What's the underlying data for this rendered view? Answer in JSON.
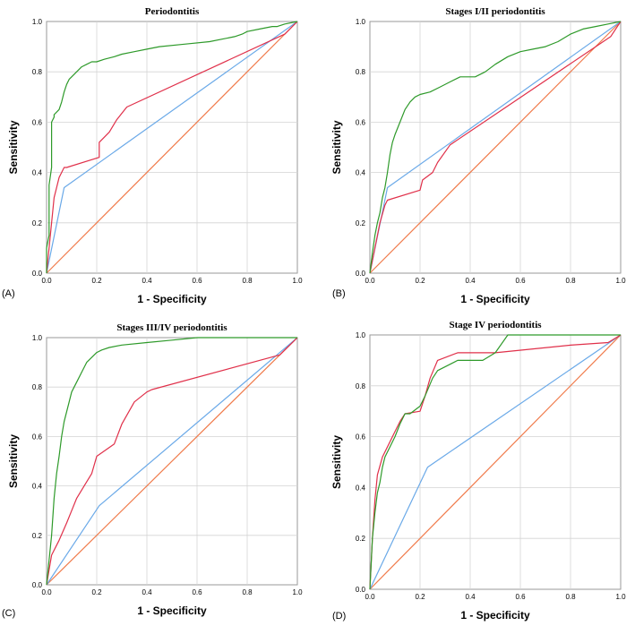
{
  "figure": {
    "colors": {
      "green": "#2e9a2a",
      "red": "#e0304a",
      "blue": "#6aa9e8",
      "orange": "#f07a4a"
    }
  },
  "chart_data": [
    {
      "type": "line",
      "panel_label": "(A)",
      "title": "Periodontitis",
      "xlabel": "1 - Specificity",
      "ylabel": "Sensitivity",
      "xlim": [
        0,
        1
      ],
      "ylim": [
        0,
        1
      ],
      "xticks": [
        "0.0",
        "0.2",
        "0.4",
        "0.6",
        "0.8",
        "1.0"
      ],
      "yticks": [
        "0.0",
        "0.2",
        "0.4",
        "0.6",
        "0.8",
        "1.0"
      ],
      "grid": true,
      "series": [
        {
          "color": "green",
          "x": [
            0,
            0,
            0.01,
            0.01,
            0.02,
            0.02,
            0.03,
            0.03,
            0.05,
            0.06,
            0.07,
            0.08,
            0.09,
            0.1,
            0.12,
            0.14,
            0.16,
            0.18,
            0.2,
            0.23,
            0.27,
            0.3,
            0.35,
            0.4,
            0.45,
            0.55,
            0.65,
            0.7,
            0.75,
            0.78,
            0.8,
            0.85,
            0.9,
            0.92,
            0.95,
            1.0
          ],
          "y": [
            0,
            0.1,
            0.15,
            0.35,
            0.42,
            0.6,
            0.62,
            0.63,
            0.65,
            0.68,
            0.72,
            0.75,
            0.77,
            0.78,
            0.8,
            0.82,
            0.83,
            0.84,
            0.84,
            0.85,
            0.86,
            0.87,
            0.88,
            0.89,
            0.9,
            0.91,
            0.92,
            0.93,
            0.94,
            0.95,
            0.96,
            0.97,
            0.98,
            0.98,
            0.99,
            1.0
          ]
        },
        {
          "color": "red",
          "x": [
            0,
            0.01,
            0.02,
            0.03,
            0.04,
            0.05,
            0.06,
            0.07,
            0.08,
            0.21,
            0.21,
            0.25,
            0.28,
            0.32,
            0.95,
            1.0
          ],
          "y": [
            0,
            0.1,
            0.2,
            0.3,
            0.34,
            0.38,
            0.4,
            0.42,
            0.42,
            0.46,
            0.52,
            0.56,
            0.61,
            0.66,
            0.95,
            1.0
          ]
        },
        {
          "color": "blue",
          "x": [
            0,
            0.07,
            1.0
          ],
          "y": [
            0,
            0.34,
            1.0
          ]
        },
        {
          "color": "orange",
          "x": [
            0,
            1.0
          ],
          "y": [
            0,
            1.0
          ]
        }
      ]
    },
    {
      "type": "line",
      "panel_label": "(B)",
      "title": "Stages I/II periodontitis",
      "xlabel": "1 - Specificity",
      "ylabel": "Sensitivity",
      "xlim": [
        0,
        1
      ],
      "ylim": [
        0,
        1
      ],
      "xticks": [
        "0.0",
        "0.2",
        "0.4",
        "0.6",
        "0.8",
        "1.0"
      ],
      "yticks": [
        "0.0",
        "0.2",
        "0.4",
        "0.6",
        "0.8",
        "1.0"
      ],
      "grid": true,
      "series": [
        {
          "color": "green",
          "x": [
            0,
            0.01,
            0.02,
            0.03,
            0.04,
            0.05,
            0.06,
            0.07,
            0.08,
            0.09,
            0.1,
            0.12,
            0.14,
            0.16,
            0.18,
            0.2,
            0.24,
            0.28,
            0.32,
            0.36,
            0.42,
            0.46,
            0.5,
            0.55,
            0.6,
            0.65,
            0.7,
            0.75,
            0.8,
            0.85,
            0.9,
            0.95,
            1.0
          ],
          "y": [
            0,
            0.08,
            0.15,
            0.2,
            0.24,
            0.3,
            0.34,
            0.4,
            0.47,
            0.52,
            0.55,
            0.6,
            0.65,
            0.68,
            0.7,
            0.71,
            0.72,
            0.74,
            0.76,
            0.78,
            0.78,
            0.8,
            0.83,
            0.86,
            0.88,
            0.89,
            0.9,
            0.92,
            0.95,
            0.97,
            0.98,
            0.99,
            1.0
          ]
        },
        {
          "color": "red",
          "x": [
            0,
            0.02,
            0.04,
            0.06,
            0.07,
            0.2,
            0.21,
            0.25,
            0.27,
            0.32,
            0.96,
            1.0
          ],
          "y": [
            0,
            0.1,
            0.2,
            0.27,
            0.29,
            0.33,
            0.37,
            0.4,
            0.44,
            0.51,
            0.94,
            1.0
          ]
        },
        {
          "color": "blue",
          "x": [
            0,
            0.07,
            1.0
          ],
          "y": [
            0,
            0.34,
            1.0
          ]
        },
        {
          "color": "orange",
          "x": [
            0,
            1.0
          ],
          "y": [
            0,
            1.0
          ]
        }
      ]
    },
    {
      "type": "line",
      "panel_label": "(C)",
      "title": "Stages III/IV periodontitis",
      "xlabel": "1 - Specificity",
      "ylabel": "Sensitivity",
      "xlim": [
        0,
        1
      ],
      "ylim": [
        0,
        1
      ],
      "xticks": [
        "0.0",
        "0.2",
        "0.4",
        "0.6",
        "0.8",
        "1.0"
      ],
      "yticks": [
        "0.0",
        "0.2",
        "0.4",
        "0.6",
        "0.8",
        "1.0"
      ],
      "grid": true,
      "series": [
        {
          "color": "green",
          "x": [
            0,
            0.01,
            0.02,
            0.03,
            0.04,
            0.05,
            0.06,
            0.07,
            0.08,
            0.09,
            0.1,
            0.12,
            0.14,
            0.16,
            0.18,
            0.2,
            0.22,
            0.25,
            0.3,
            0.4,
            0.5,
            0.6,
            0.8,
            1.0
          ],
          "y": [
            0,
            0.1,
            0.2,
            0.35,
            0.45,
            0.52,
            0.6,
            0.66,
            0.7,
            0.74,
            0.78,
            0.82,
            0.86,
            0.9,
            0.92,
            0.94,
            0.95,
            0.96,
            0.97,
            0.98,
            0.99,
            1.0,
            1.0,
            1.0
          ],
          "_": 0
        },
        {
          "color": "red",
          "x": [
            0,
            0.02,
            0.05,
            0.08,
            0.1,
            0.12,
            0.15,
            0.18,
            0.2,
            0.27,
            0.3,
            0.35,
            0.4,
            0.42,
            0.93,
            1.0
          ],
          "y": [
            0,
            0.12,
            0.18,
            0.25,
            0.3,
            0.35,
            0.4,
            0.45,
            0.52,
            0.57,
            0.65,
            0.74,
            0.78,
            0.79,
            0.93,
            1.0
          ]
        },
        {
          "color": "blue",
          "x": [
            0,
            0.21,
            1.0
          ],
          "y": [
            0,
            0.32,
            1.0
          ]
        },
        {
          "color": "orange",
          "x": [
            0,
            1.0
          ],
          "y": [
            0,
            1.0
          ]
        }
      ]
    },
    {
      "type": "line",
      "panel_label": "(D)",
      "title": "Stage IV periodontitis",
      "xlabel": "1 - Specificity",
      "ylabel": "Sensitivity",
      "xlim": [
        0,
        1
      ],
      "ylim": [
        0,
        1
      ],
      "xticks": [
        "0.0",
        "0.2",
        "0.4",
        "0.6",
        "0.8",
        "1.0"
      ],
      "yticks": [
        "0.0",
        "0.2",
        "0.4",
        "0.6",
        "0.8",
        "1.0"
      ],
      "grid": true,
      "series": [
        {
          "color": "green",
          "x": [
            0,
            0.01,
            0.02,
            0.03,
            0.04,
            0.05,
            0.06,
            0.08,
            0.1,
            0.12,
            0.14,
            0.16,
            0.2,
            0.22,
            0.25,
            0.27,
            0.35,
            0.45,
            0.5,
            0.55,
            0.6,
            0.8,
            1.0
          ],
          "y": [
            0,
            0.2,
            0.3,
            0.38,
            0.42,
            0.48,
            0.52,
            0.56,
            0.6,
            0.65,
            0.69,
            0.69,
            0.72,
            0.76,
            0.83,
            0.86,
            0.9,
            0.9,
            0.93,
            1.0,
            1.0,
            1.0,
            1.0
          ]
        },
        {
          "color": "red",
          "x": [
            0,
            0.01,
            0.02,
            0.03,
            0.05,
            0.08,
            0.1,
            0.12,
            0.14,
            0.2,
            0.22,
            0.24,
            0.27,
            0.35,
            0.5,
            0.8,
            0.95,
            1.0
          ],
          "y": [
            0,
            0.2,
            0.35,
            0.45,
            0.52,
            0.58,
            0.62,
            0.66,
            0.69,
            0.7,
            0.76,
            0.83,
            0.9,
            0.93,
            0.93,
            0.96,
            0.97,
            1.0
          ]
        },
        {
          "color": "blue",
          "x": [
            0,
            0.23,
            1.0
          ],
          "y": [
            0,
            0.48,
            1.0
          ]
        },
        {
          "color": "orange",
          "x": [
            0,
            1.0
          ],
          "y": [
            0,
            1.0
          ]
        }
      ]
    }
  ]
}
